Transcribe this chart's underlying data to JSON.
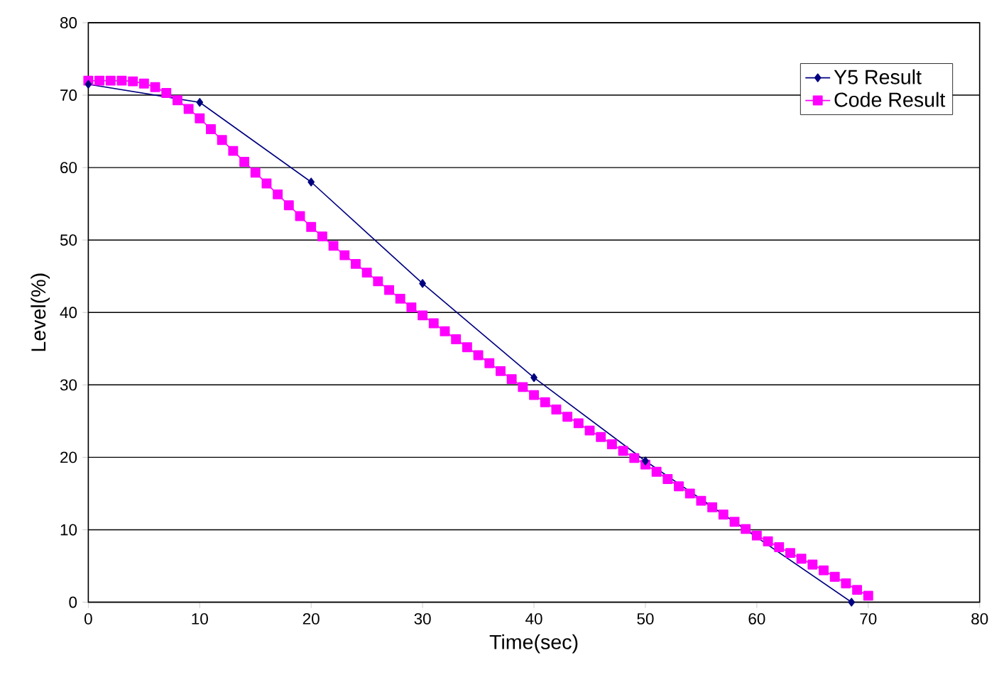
{
  "chart_data": {
    "type": "line",
    "xlabel": "Time(sec)",
    "ylabel": "Level(%)",
    "xlim": [
      0,
      80
    ],
    "xticks": [
      0,
      10,
      20,
      30,
      40,
      50,
      60,
      70,
      80
    ],
    "ylim": [
      0,
      80
    ],
    "yticks": [
      0,
      10,
      20,
      30,
      40,
      50,
      60,
      70,
      80
    ],
    "grid": "y",
    "legend": "top right",
    "series": [
      {
        "name": "Y5 Result",
        "color": "#000080",
        "marker": "diamond",
        "x": [
          0,
          10,
          20,
          30,
          40,
          50,
          68.5
        ],
        "values": [
          71.5,
          69,
          58,
          44,
          31,
          19.5,
          0
        ]
      },
      {
        "name": "Code Result",
        "color": "#ff00ff",
        "marker": "square",
        "x": [
          0,
          1,
          2,
          3,
          4,
          5,
          6,
          7,
          8,
          9,
          10,
          11,
          12,
          13,
          14,
          15,
          16,
          17,
          18,
          19,
          20,
          21,
          22,
          23,
          24,
          25,
          26,
          27,
          28,
          29,
          30,
          31,
          32,
          33,
          34,
          35,
          36,
          37,
          38,
          39,
          40,
          41,
          42,
          43,
          44,
          45,
          46,
          47,
          48,
          49,
          50,
          51,
          52,
          53,
          54,
          55,
          56,
          57,
          58,
          59,
          60,
          61,
          62,
          63,
          64,
          65,
          66,
          67,
          68,
          69,
          70
        ],
        "values": [
          72,
          72,
          72,
          72,
          71.9,
          71.6,
          71.1,
          70.3,
          69.3,
          68.1,
          66.8,
          65.3,
          63.8,
          62.3,
          60.8,
          59.3,
          57.8,
          56.3,
          54.8,
          53.3,
          51.8,
          50.5,
          49.2,
          47.9,
          46.7,
          45.5,
          44.3,
          43.1,
          41.9,
          40.7,
          39.6,
          38.5,
          37.4,
          36.3,
          35.2,
          34.1,
          33.0,
          31.9,
          30.8,
          29.7,
          28.6,
          27.6,
          26.6,
          25.6,
          24.7,
          23.7,
          22.8,
          21.8,
          20.9,
          19.9,
          19.0,
          18.0,
          17.0,
          16.0,
          15.0,
          14.0,
          13.1,
          12.1,
          11.1,
          10.1,
          9.2,
          8.4,
          7.6,
          6.8,
          6.0,
          5.2,
          4.4,
          3.5,
          2.6,
          1.7,
          0.9
        ]
      }
    ]
  }
}
